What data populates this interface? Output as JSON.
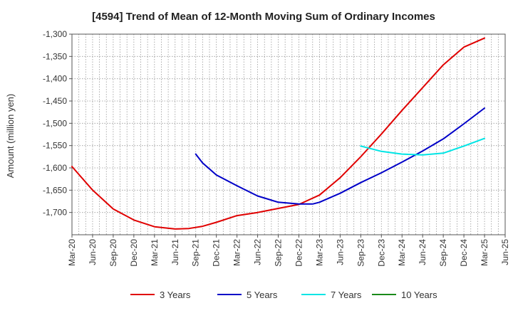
{
  "chart_data": {
    "type": "line",
    "title": "[4594]  Trend of Mean of 12-Month Moving Sum of Ordinary Incomes",
    "ylabel": "Amount (million yen)",
    "xlabel": "",
    "ylim": [
      -1750,
      -1300
    ],
    "yticks": [
      -1300,
      -1350,
      -1400,
      -1450,
      -1500,
      -1550,
      -1600,
      -1650,
      -1700
    ],
    "ytick_labels": [
      "-1,300",
      "-1,350",
      "-1,400",
      "-1,450",
      "-1,500",
      "-1,550",
      "-1,600",
      "-1,650",
      "-1,700"
    ],
    "xlim": [
      0,
      63
    ],
    "xticks": [
      0,
      3,
      6,
      9,
      12,
      15,
      18,
      21,
      24,
      27,
      30,
      33,
      36,
      39,
      42,
      45,
      48,
      51,
      54,
      57,
      60,
      63
    ],
    "xtick_labels": [
      "Mar-20",
      "Jun-20",
      "Sep-20",
      "Dec-20",
      "Mar-21",
      "Jun-21",
      "Sep-21",
      "Dec-21",
      "Mar-22",
      "Jun-22",
      "Sep-22",
      "Dec-22",
      "Mar-23",
      "Jun-23",
      "Sep-23",
      "Dec-23",
      "Mar-24",
      "Jun-24",
      "Sep-24",
      "Dec-24",
      "Mar-25",
      "Jun-25"
    ],
    "grid": true,
    "legend_position": "bottom",
    "series": [
      {
        "name": "3 Years",
        "color": "#e00000",
        "points": [
          [
            0,
            -1597
          ],
          [
            3,
            -1650
          ],
          [
            6,
            -1692
          ],
          [
            9,
            -1717
          ],
          [
            12,
            -1732
          ],
          [
            15,
            -1737
          ],
          [
            17,
            -1736
          ],
          [
            19,
            -1731
          ],
          [
            21,
            -1722
          ],
          [
            24,
            -1707
          ],
          [
            27,
            -1700
          ],
          [
            30,
            -1691
          ],
          [
            33,
            -1682
          ],
          [
            36,
            -1661
          ],
          [
            39,
            -1622
          ],
          [
            42,
            -1575
          ],
          [
            45,
            -1524
          ],
          [
            48,
            -1471
          ],
          [
            51,
            -1420
          ],
          [
            54,
            -1369
          ],
          [
            57,
            -1329
          ],
          [
            60,
            -1309
          ]
        ]
      },
      {
        "name": "5 Years",
        "color": "#0000c8",
        "points": [
          [
            18,
            -1569
          ],
          [
            19,
            -1589
          ],
          [
            21,
            -1616
          ],
          [
            24,
            -1640
          ],
          [
            27,
            -1663
          ],
          [
            30,
            -1677
          ],
          [
            33,
            -1681
          ],
          [
            35,
            -1681
          ],
          [
            36,
            -1677
          ],
          [
            39,
            -1657
          ],
          [
            42,
            -1633
          ],
          [
            45,
            -1611
          ],
          [
            48,
            -1587
          ],
          [
            51,
            -1562
          ],
          [
            54,
            -1535
          ],
          [
            57,
            -1501
          ],
          [
            60,
            -1466
          ]
        ]
      },
      {
        "name": "7 Years",
        "color": "#00e5e5",
        "points": [
          [
            42,
            -1551
          ],
          [
            45,
            -1563
          ],
          [
            48,
            -1569
          ],
          [
            51,
            -1571
          ],
          [
            54,
            -1567
          ],
          [
            57,
            -1551
          ],
          [
            60,
            -1534
          ]
        ]
      },
      {
        "name": "10 Years",
        "color": "#1a8a1a",
        "points": []
      }
    ]
  }
}
